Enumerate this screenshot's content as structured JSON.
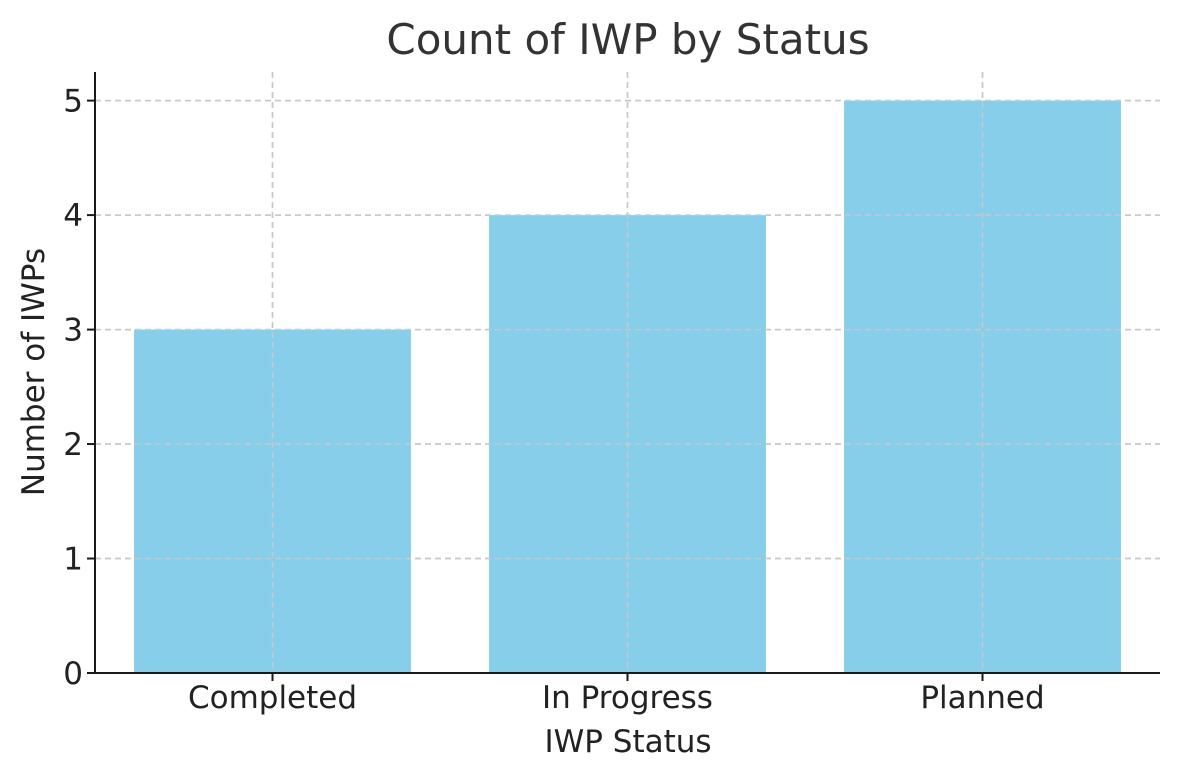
{
  "chart_data": {
    "type": "bar",
    "title": "Count of IWP by Status",
    "xlabel": "IWP Status",
    "ylabel": "Number of IWPs",
    "categories": [
      "Completed",
      "In Progress",
      "Planned"
    ],
    "values": [
      3,
      4,
      5
    ],
    "ylim": [
      0,
      5.25
    ],
    "yticks": [
      0,
      1,
      2,
      3,
      4,
      5
    ],
    "grid": true,
    "legend": "none",
    "bar_color": "#87CEEB"
  }
}
